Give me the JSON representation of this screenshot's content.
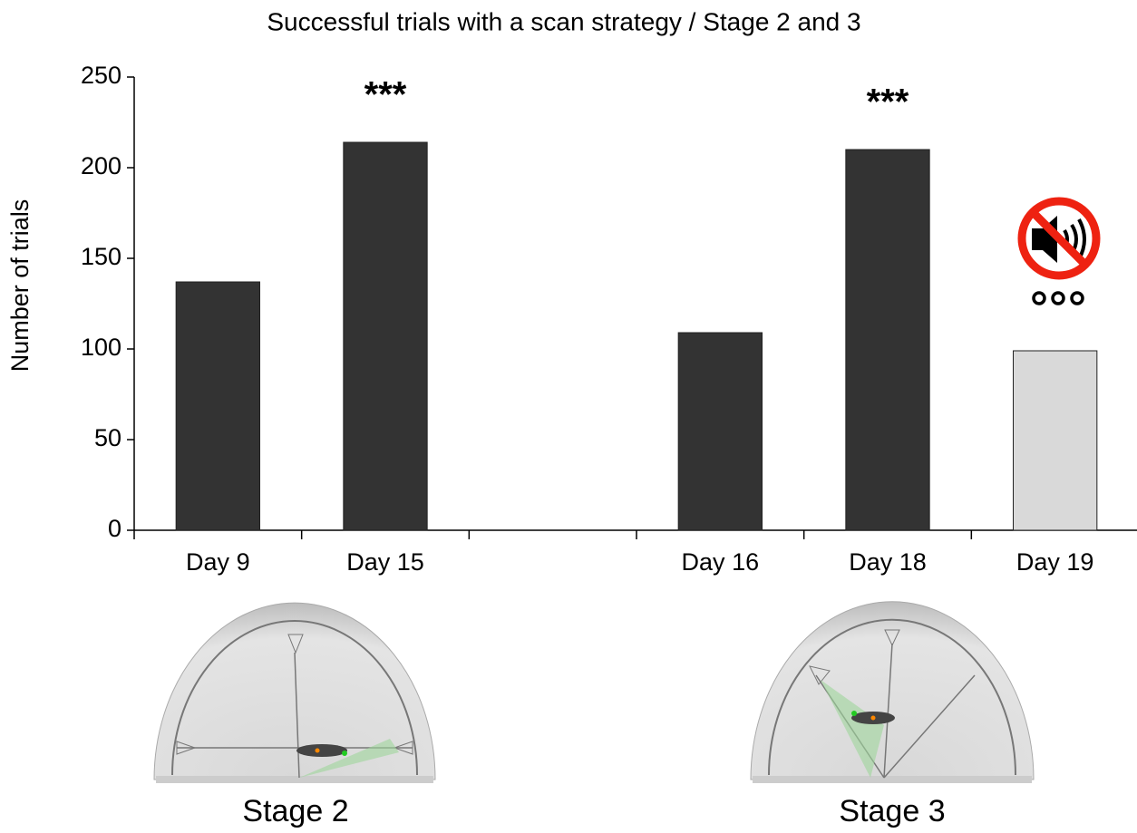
{
  "chart_data": {
    "type": "bar",
    "title": "Successful trials with a scan strategy / Stage 2 and 3",
    "y_label": "Number of trials",
    "categories": [
      "Day 9",
      "Day 15",
      null,
      "Day 16",
      "Day 18",
      "Day 19"
    ],
    "values": [
      137,
      214,
      null,
      109,
      210,
      99
    ],
    "colors": [
      "#333333",
      "#333333",
      null,
      "#333333",
      "#333333",
      "#d9d9d9"
    ],
    "ylim": [
      0,
      250
    ],
    "yticks": [
      0,
      50,
      100,
      150,
      200,
      250
    ],
    "annotations": [
      {
        "text": "***",
        "category": "Day 15"
      },
      {
        "text": "***",
        "category": "Day 18"
      }
    ],
    "panels": [
      "Stage 2",
      "Stage 3"
    ]
  }
}
